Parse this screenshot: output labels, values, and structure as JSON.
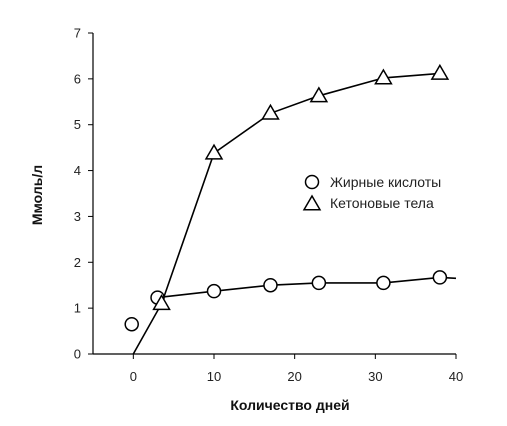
{
  "chart_data": {
    "type": "line",
    "title": "",
    "xlabel": "Количество дней",
    "ylabel": "Ммоль/л",
    "xlim": [
      -5,
      40
    ],
    "ylim": [
      0,
      7
    ],
    "xticks": [
      0,
      10,
      20,
      30,
      40
    ],
    "yticks": [
      0,
      1,
      2,
      3,
      4,
      5,
      6,
      7
    ],
    "grid": false,
    "legend": "right",
    "series": [
      {
        "name": "Жирные кислоты",
        "marker": "circle",
        "color": "#000000",
        "x": [
          -0.2,
          3,
          10,
          17,
          23,
          31,
          38
        ],
        "y": [
          0.65,
          1.23,
          1.37,
          1.5,
          1.55,
          1.55,
          1.67
        ],
        "line_from": 3,
        "line_extends_to": [
          40,
          1.65
        ]
      },
      {
        "name": "Кетоновые тела",
        "marker": "triangle",
        "color": "#000000",
        "x": [
          0,
          3.5,
          10,
          17,
          23,
          31,
          38
        ],
        "y": [
          0,
          1.1,
          4.38,
          5.25,
          5.63,
          6.02,
          6.12
        ],
        "marker_from": 1
      }
    ]
  }
}
